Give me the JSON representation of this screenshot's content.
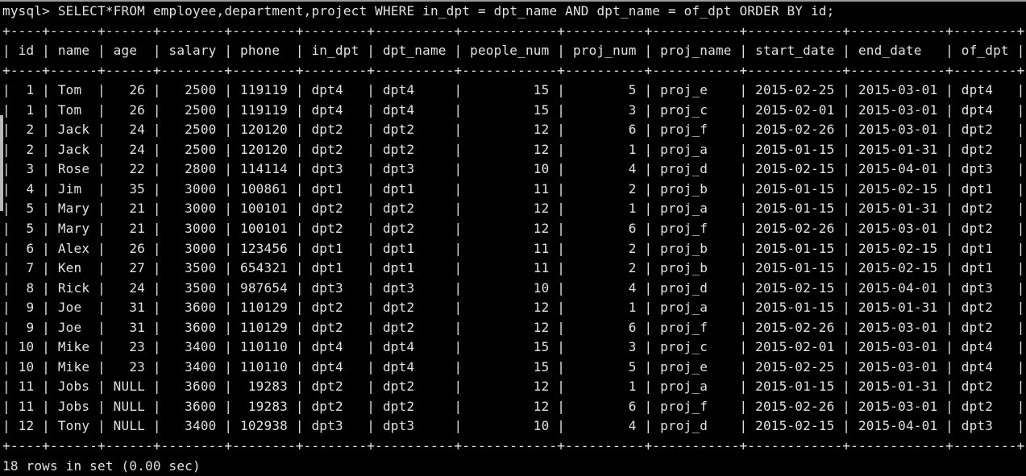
{
  "terminal": {
    "prompt": "mysql> ",
    "query": "SELECT*FROM employee,department,project WHERE in_dpt = dpt_name AND dpt_name = of_dpt ORDER BY id;",
    "status": "18 rows in set (0.00 sec)",
    "colors": {
      "background": "#000000",
      "text": "#e2e2e2"
    }
  },
  "result_table": {
    "columns": [
      {
        "label": "id",
        "width": 2,
        "align": "right"
      },
      {
        "label": "name",
        "width": 4,
        "align": "left"
      },
      {
        "label": "age",
        "width": 4,
        "align": "right"
      },
      {
        "label": "salary",
        "width": 6,
        "align": "right"
      },
      {
        "label": "phone",
        "width": 6,
        "align": "right"
      },
      {
        "label": "in_dpt",
        "width": 6,
        "align": "left"
      },
      {
        "label": "dpt_name",
        "width": 8,
        "align": "left"
      },
      {
        "label": "people_num",
        "width": 10,
        "align": "right"
      },
      {
        "label": "proj_num",
        "width": 8,
        "align": "right"
      },
      {
        "label": "proj_name",
        "width": 9,
        "align": "left"
      },
      {
        "label": "start_date",
        "width": 10,
        "align": "left"
      },
      {
        "label": "end_date",
        "width": 10,
        "align": "left"
      },
      {
        "label": "of_dpt",
        "width": 6,
        "align": "left"
      }
    ],
    "rows": [
      [
        "1",
        "Tom",
        "26",
        "2500",
        "119119",
        "dpt4",
        "dpt4",
        "15",
        "5",
        "proj_e",
        "2015-02-25",
        "2015-03-01",
        "dpt4"
      ],
      [
        "1",
        "Tom",
        "26",
        "2500",
        "119119",
        "dpt4",
        "dpt4",
        "15",
        "3",
        "proj_c",
        "2015-02-01",
        "2015-03-01",
        "dpt4"
      ],
      [
        "2",
        "Jack",
        "24",
        "2500",
        "120120",
        "dpt2",
        "dpt2",
        "12",
        "6",
        "proj_f",
        "2015-02-26",
        "2015-03-01",
        "dpt2"
      ],
      [
        "2",
        "Jack",
        "24",
        "2500",
        "120120",
        "dpt2",
        "dpt2",
        "12",
        "1",
        "proj_a",
        "2015-01-15",
        "2015-01-31",
        "dpt2"
      ],
      [
        "3",
        "Rose",
        "22",
        "2800",
        "114114",
        "dpt3",
        "dpt3",
        "10",
        "4",
        "proj_d",
        "2015-02-15",
        "2015-04-01",
        "dpt3"
      ],
      [
        "4",
        "Jim",
        "35",
        "3000",
        "100861",
        "dpt1",
        "dpt1",
        "11",
        "2",
        "proj_b",
        "2015-01-15",
        "2015-02-15",
        "dpt1"
      ],
      [
        "5",
        "Mary",
        "21",
        "3000",
        "100101",
        "dpt2",
        "dpt2",
        "12",
        "1",
        "proj_a",
        "2015-01-15",
        "2015-01-31",
        "dpt2"
      ],
      [
        "5",
        "Mary",
        "21",
        "3000",
        "100101",
        "dpt2",
        "dpt2",
        "12",
        "6",
        "proj_f",
        "2015-02-26",
        "2015-03-01",
        "dpt2"
      ],
      [
        "6",
        "Alex",
        "26",
        "3000",
        "123456",
        "dpt1",
        "dpt1",
        "11",
        "2",
        "proj_b",
        "2015-01-15",
        "2015-02-15",
        "dpt1"
      ],
      [
        "7",
        "Ken",
        "27",
        "3500",
        "654321",
        "dpt1",
        "dpt1",
        "11",
        "2",
        "proj_b",
        "2015-01-15",
        "2015-02-15",
        "dpt1"
      ],
      [
        "8",
        "Rick",
        "24",
        "3500",
        "987654",
        "dpt3",
        "dpt3",
        "10",
        "4",
        "proj_d",
        "2015-02-15",
        "2015-04-01",
        "dpt3"
      ],
      [
        "9",
        "Joe",
        "31",
        "3600",
        "110129",
        "dpt2",
        "dpt2",
        "12",
        "1",
        "proj_a",
        "2015-01-15",
        "2015-01-31",
        "dpt2"
      ],
      [
        "9",
        "Joe",
        "31",
        "3600",
        "110129",
        "dpt2",
        "dpt2",
        "12",
        "6",
        "proj_f",
        "2015-02-26",
        "2015-03-01",
        "dpt2"
      ],
      [
        "10",
        "Mike",
        "23",
        "3400",
        "110110",
        "dpt4",
        "dpt4",
        "15",
        "3",
        "proj_c",
        "2015-02-01",
        "2015-03-01",
        "dpt4"
      ],
      [
        "10",
        "Mike",
        "23",
        "3400",
        "110110",
        "dpt4",
        "dpt4",
        "15",
        "5",
        "proj_e",
        "2015-02-25",
        "2015-03-01",
        "dpt4"
      ],
      [
        "11",
        "Jobs",
        "NULL",
        "3600",
        "19283",
        "dpt2",
        "dpt2",
        "12",
        "1",
        "proj_a",
        "2015-01-15",
        "2015-01-31",
        "dpt2"
      ],
      [
        "11",
        "Jobs",
        "NULL",
        "3600",
        "19283",
        "dpt2",
        "dpt2",
        "12",
        "6",
        "proj_f",
        "2015-02-26",
        "2015-03-01",
        "dpt2"
      ],
      [
        "12",
        "Tony",
        "NULL",
        "3400",
        "102938",
        "dpt3",
        "dpt3",
        "10",
        "4",
        "proj_d",
        "2015-02-15",
        "2015-04-01",
        "dpt3"
      ]
    ]
  }
}
